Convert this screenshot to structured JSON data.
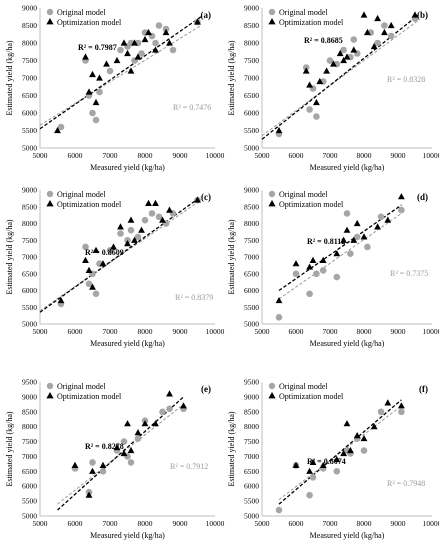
{
  "colors": {
    "original": "#a6a6a6",
    "optimization": "#000000",
    "axis": "#bfbfbf"
  },
  "chart_data": [
    {
      "type": "scatter",
      "label": "(a)",
      "xlabel": "Measured yield (kg/ha)",
      "ylabel": "Estimated yield (kg/ha)",
      "xlim": [
        5000,
        10000
      ],
      "ylim": [
        5000,
        9000
      ],
      "xticks": [
        5000,
        6000,
        7000,
        8000,
        9000,
        10000
      ],
      "yticks": [
        5000,
        5500,
        6000,
        6500,
        7000,
        7500,
        8000,
        8500,
        9000
      ],
      "legend": [
        "Original model",
        "Optimization model"
      ],
      "r2_opt": "R² = 0.7987",
      "r2_orig": "R² = 0.7476",
      "fit_opt": [
        [
          5000,
          5550
        ],
        [
          9600,
          8750
        ]
      ],
      "fit_orig": [
        [
          5000,
          5650
        ],
        [
          9600,
          8500
        ]
      ],
      "original": [
        [
          5600,
          5600
        ],
        [
          6300,
          7500
        ],
        [
          6400,
          6500
        ],
        [
          6500,
          6000
        ],
        [
          6600,
          5800
        ],
        [
          6700,
          6600
        ],
        [
          7000,
          7200
        ],
        [
          7300,
          7800
        ],
        [
          7500,
          7900
        ],
        [
          7600,
          8000
        ],
        [
          7700,
          7500
        ],
        [
          7800,
          8000
        ],
        [
          7900,
          7700
        ],
        [
          8000,
          8300
        ],
        [
          8200,
          8200
        ],
        [
          8300,
          8000
        ],
        [
          8400,
          8500
        ],
        [
          8600,
          8400
        ],
        [
          8800,
          7800
        ],
        [
          9500,
          8600
        ]
      ],
      "optimization": [
        [
          5500,
          5500
        ],
        [
          6300,
          7600
        ],
        [
          6400,
          6600
        ],
        [
          6500,
          7100
        ],
        [
          6600,
          6300
        ],
        [
          6700,
          7000
        ],
        [
          6900,
          7400
        ],
        [
          7200,
          7500
        ],
        [
          7400,
          8000
        ],
        [
          7500,
          7700
        ],
        [
          7600,
          7200
        ],
        [
          7700,
          8000
        ],
        [
          7800,
          7600
        ],
        [
          8000,
          8100
        ],
        [
          8100,
          8300
        ],
        [
          8300,
          7800
        ],
        [
          8600,
          8300
        ],
        [
          8700,
          8000
        ],
        [
          9500,
          8600
        ]
      ]
    },
    {
      "type": "scatter",
      "label": "(b)",
      "xlabel": "Measured yield (kg/ha)",
      "ylabel": "Estimated yield (kg/ha)",
      "xlim": [
        5000,
        10000
      ],
      "ylim": [
        5000,
        9000
      ],
      "xticks": [
        5000,
        6000,
        7000,
        8000,
        9000,
        10000
      ],
      "yticks": [
        5000,
        5500,
        6000,
        6500,
        7000,
        7500,
        8000,
        8500,
        9000
      ],
      "legend": [
        "Original model",
        "Optimization model"
      ],
      "r2_opt": "R² = 0.8685",
      "r2_orig": "R² = 0.8328",
      "fit_opt": [
        [
          5000,
          5250
        ],
        [
          9600,
          8800
        ]
      ],
      "fit_orig": [
        [
          5000,
          5350
        ],
        [
          9600,
          8650
        ]
      ],
      "original": [
        [
          5500,
          5400
        ],
        [
          6300,
          7300
        ],
        [
          6400,
          6100
        ],
        [
          6500,
          6700
        ],
        [
          6600,
          5900
        ],
        [
          6800,
          6900
        ],
        [
          7000,
          7500
        ],
        [
          7200,
          7400
        ],
        [
          7400,
          7800
        ],
        [
          7600,
          7600
        ],
        [
          7700,
          8100
        ],
        [
          7800,
          7700
        ],
        [
          8200,
          8300
        ],
        [
          8400,
          8000
        ],
        [
          8600,
          8500
        ],
        [
          8800,
          8200
        ],
        [
          9500,
          8700
        ]
      ],
      "optimization": [
        [
          5500,
          5500
        ],
        [
          6300,
          7200
        ],
        [
          6400,
          6800
        ],
        [
          6600,
          6300
        ],
        [
          6700,
          6900
        ],
        [
          6900,
          7200
        ],
        [
          7100,
          7400
        ],
        [
          7300,
          7700
        ],
        [
          7400,
          7500
        ],
        [
          7500,
          7600
        ],
        [
          7700,
          7800
        ],
        [
          8000,
          8800
        ],
        [
          8100,
          8300
        ],
        [
          8300,
          7900
        ],
        [
          8400,
          8700
        ],
        [
          8600,
          8300
        ],
        [
          8800,
          8500
        ],
        [
          9500,
          8800
        ]
      ]
    },
    {
      "type": "scatter",
      "label": "(c)",
      "xlabel": "Measured yield (kg/ha)",
      "ylabel": "Estimated yield (kg/ha)",
      "xlim": [
        5000,
        10000
      ],
      "ylim": [
        5000,
        9000
      ],
      "xticks": [
        5000,
        6000,
        7000,
        8000,
        9000,
        10000
      ],
      "yticks": [
        5000,
        5500,
        6000,
        6500,
        7000,
        7500,
        8000,
        8500,
        9000
      ],
      "legend": [
        "Original model",
        "Optimization model"
      ],
      "r2_opt": "R² = 0.8609",
      "r2_orig": "R² = 0.8379",
      "fit_opt": [
        [
          5000,
          5350
        ],
        [
          9600,
          8800
        ]
      ],
      "fit_orig": [
        [
          5000,
          5400
        ],
        [
          9600,
          8700
        ]
      ],
      "original": [
        [
          5600,
          5600
        ],
        [
          6300,
          7300
        ],
        [
          6400,
          6200
        ],
        [
          6500,
          6500
        ],
        [
          6600,
          5900
        ],
        [
          6700,
          6800
        ],
        [
          7000,
          7200
        ],
        [
          7300,
          7700
        ],
        [
          7500,
          7500
        ],
        [
          7600,
          7800
        ],
        [
          7800,
          7600
        ],
        [
          8000,
          8100
        ],
        [
          8200,
          8300
        ],
        [
          8400,
          8200
        ],
        [
          8600,
          8000
        ],
        [
          8800,
          8300
        ],
        [
          9500,
          8700
        ]
      ],
      "optimization": [
        [
          5600,
          5700
        ],
        [
          6300,
          6900
        ],
        [
          6400,
          6600
        ],
        [
          6500,
          6100
        ],
        [
          6600,
          7200
        ],
        [
          6800,
          6800
        ],
        [
          7100,
          7300
        ],
        [
          7300,
          7900
        ],
        [
          7500,
          7400
        ],
        [
          7600,
          8100
        ],
        [
          7700,
          7500
        ],
        [
          7900,
          7800
        ],
        [
          8100,
          8600
        ],
        [
          8300,
          8600
        ],
        [
          8500,
          8100
        ],
        [
          8700,
          8400
        ],
        [
          9500,
          8700
        ]
      ]
    },
    {
      "type": "scatter",
      "label": "(d)",
      "xlabel": "Measured yield (kg/ha)",
      "ylabel": "Estimated yield (kg/ha)",
      "xlim": [
        5000,
        10000
      ],
      "ylim": [
        5000,
        9000
      ],
      "xticks": [
        5000,
        6000,
        7000,
        8000,
        9000,
        10000
      ],
      "yticks": [
        5000,
        5500,
        6000,
        6500,
        7000,
        7500,
        8000,
        8500,
        9000
      ],
      "legend": [
        "Original model",
        "Optimization model"
      ],
      "r2_opt": "R² = 0.8112",
      "r2_orig": "R² = 0.7375",
      "fit_opt": [
        [
          5500,
          6000
        ],
        [
          9100,
          8550
        ]
      ],
      "fit_orig": [
        [
          5500,
          5750
        ],
        [
          9100,
          8300
        ]
      ],
      "original": [
        [
          5500,
          5200
        ],
        [
          6000,
          6500
        ],
        [
          6400,
          5900
        ],
        [
          6600,
          6500
        ],
        [
          6800,
          6600
        ],
        [
          7200,
          6400
        ],
        [
          7500,
          8300
        ],
        [
          7600,
          7100
        ],
        [
          7800,
          7600
        ],
        [
          8100,
          7300
        ],
        [
          8500,
          8200
        ],
        [
          9100,
          8400
        ]
      ],
      "optimization": [
        [
          5500,
          5700
        ],
        [
          6000,
          6800
        ],
        [
          6400,
          6700
        ],
        [
          6500,
          6900
        ],
        [
          6800,
          6900
        ],
        [
          7200,
          7100
        ],
        [
          7400,
          7500
        ],
        [
          7500,
          7800
        ],
        [
          7700,
          7500
        ],
        [
          7800,
          8000
        ],
        [
          8000,
          7600
        ],
        [
          8400,
          7900
        ],
        [
          8700,
          8100
        ],
        [
          9100,
          8800
        ]
      ]
    },
    {
      "type": "scatter",
      "label": "(e)",
      "xlabel": "Measured yield (kg/ha)",
      "ylabel": "Estimated yield (kg/ha)",
      "xlim": [
        5000,
        10000
      ],
      "ylim": [
        5000,
        9500
      ],
      "xticks": [
        5000,
        6000,
        7000,
        8000,
        9000,
        10000
      ],
      "yticks": [
        5000,
        5500,
        6000,
        6500,
        7000,
        7500,
        8000,
        8500,
        9000,
        9500
      ],
      "legend": [
        "Original model",
        "Optimization model"
      ],
      "r2_opt": "R² = 0.8278",
      "r2_orig": "R² = 0.7912",
      "fit_opt": [
        [
          5500,
          5200
        ],
        [
          9100,
          9000
        ]
      ],
      "fit_orig": [
        [
          5500,
          5400
        ],
        [
          9100,
          8750
        ]
      ],
      "original": [
        [
          6000,
          6600
        ],
        [
          6400,
          5800
        ],
        [
          6500,
          6800
        ],
        [
          6800,
          6500
        ],
        [
          7200,
          7200
        ],
        [
          7400,
          7500
        ],
        [
          7500,
          7000
        ],
        [
          7600,
          6800
        ],
        [
          7800,
          7600
        ],
        [
          8000,
          8200
        ],
        [
          8500,
          8500
        ],
        [
          8700,
          8600
        ],
        [
          9100,
          8600
        ]
      ],
      "optimization": [
        [
          6000,
          6700
        ],
        [
          6400,
          5700
        ],
        [
          6500,
          6500
        ],
        [
          6800,
          6700
        ],
        [
          7200,
          7300
        ],
        [
          7400,
          7100
        ],
        [
          7500,
          8100
        ],
        [
          7600,
          7200
        ],
        [
          7800,
          7800
        ],
        [
          8000,
          8100
        ],
        [
          8300,
          8100
        ],
        [
          8700,
          9100
        ],
        [
          9100,
          8700
        ]
      ]
    },
    {
      "type": "scatter",
      "label": "(f)",
      "xlabel": "Measured yield (kg/ha)",
      "ylabel": "Estimated yield (kg/ha)",
      "xlim": [
        5000,
        10000
      ],
      "ylim": [
        5000,
        9500
      ],
      "xticks": [
        5000,
        6000,
        7000,
        8000,
        9000,
        10000
      ],
      "yticks": [
        5000,
        5500,
        6000,
        6500,
        7000,
        7500,
        8000,
        8500,
        9000,
        9500
      ],
      "legend": [
        "Original model",
        "Optimization model"
      ],
      "r2_opt": "R² = 0.8074",
      "r2_orig": "R² = 0.7948",
      "fit_opt": [
        [
          5500,
          5400
        ],
        [
          9100,
          8900
        ]
      ],
      "fit_orig": [
        [
          5500,
          5550
        ],
        [
          9100,
          8700
        ]
      ],
      "original": [
        [
          5500,
          5200
        ],
        [
          6000,
          6700
        ],
        [
          6400,
          5700
        ],
        [
          6500,
          6300
        ],
        [
          6800,
          6600
        ],
        [
          7200,
          6500
        ],
        [
          7500,
          7200
        ],
        [
          7600,
          7100
        ],
        [
          7800,
          7600
        ],
        [
          8000,
          7200
        ],
        [
          8500,
          8500
        ],
        [
          9100,
          8500
        ]
      ],
      "optimization": [
        [
          6000,
          6700
        ],
        [
          6400,
          6500
        ],
        [
          6500,
          6800
        ],
        [
          6800,
          6700
        ],
        [
          7200,
          6900
        ],
        [
          7400,
          7100
        ],
        [
          7500,
          8100
        ],
        [
          7600,
          7200
        ],
        [
          7800,
          7700
        ],
        [
          8000,
          7600
        ],
        [
          8300,
          8000
        ],
        [
          8700,
          8800
        ],
        [
          9100,
          8700
        ]
      ]
    }
  ]
}
